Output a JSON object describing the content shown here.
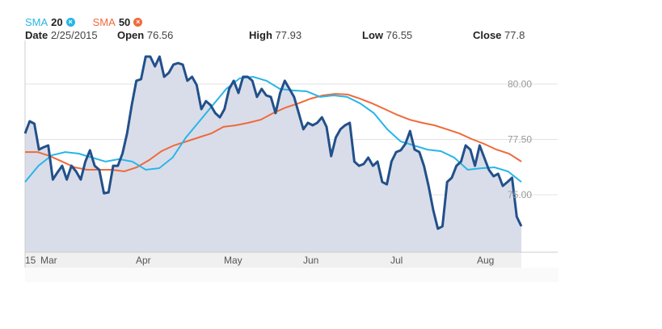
{
  "legend": [
    {
      "name": "SMA",
      "period": "20",
      "color": "#29b5e8",
      "remove_icon": "close-circle-icon"
    },
    {
      "name": "SMA",
      "period": "50",
      "color": "#ef6a3a",
      "remove_icon": "close-circle-icon"
    }
  ],
  "ohlc": {
    "date_label": "Date",
    "date": "2/25/2015",
    "open_label": "Open",
    "open": "76.56",
    "high_label": "High",
    "high": "77.93",
    "low_label": "Low",
    "low": "76.55",
    "close_label": "Close",
    "close": "77.8"
  },
  "chart_data": {
    "type": "area",
    "x_tick_labels": [
      "15",
      "Mar",
      "Apr",
      "May",
      "Jun",
      "Jul",
      "Aug"
    ],
    "y_tick_labels": [
      "80.00",
      "77.50",
      "75.00"
    ],
    "y_ticks": [
      80,
      77.5,
      75
    ],
    "ylim": [
      72.3,
      82.7
    ],
    "grid": true,
    "colors": {
      "price": "#22508a",
      "fill": "#d9dde9",
      "sma20": "#29b5e8",
      "sma50": "#ef6a3a"
    },
    "series": [
      {
        "key": "price",
        "values": [
          77.77,
          78.32,
          78.21,
          77.04,
          77.15,
          77.23,
          75.69,
          76.02,
          76.31,
          75.69,
          76.31,
          76.06,
          75.69,
          76.5,
          77.01,
          76.31,
          76.13,
          75.07,
          75.11,
          76.31,
          76.31,
          76.86,
          77.77,
          79.05,
          80.15,
          80.22,
          81.24,
          81.24,
          80.8,
          81.24,
          80.33,
          80.51,
          80.88,
          80.95,
          80.88,
          80.15,
          80.33,
          79.96,
          78.87,
          79.23,
          79.05,
          78.69,
          78.5,
          78.87,
          79.78,
          80.15,
          79.6,
          80.33,
          80.33,
          80.15,
          79.42,
          79.78,
          79.49,
          79.42,
          78.69,
          79.6,
          80.15,
          79.78,
          79.42,
          78.69,
          77.96,
          78.25,
          78.14,
          78.25,
          78.5,
          78.07,
          76.75,
          77.59,
          77.96,
          78.14,
          78.25,
          76.5,
          76.31,
          76.39,
          76.68,
          76.31,
          76.5,
          75.58,
          75.47,
          76.5,
          76.93,
          77.01,
          77.3,
          77.88,
          77.04,
          76.93,
          76.31,
          75.4,
          74.31,
          73.47,
          73.58,
          75.58,
          75.77,
          76.31,
          76.5,
          77.23,
          77.04,
          76.31,
          77.23,
          76.68,
          76.13,
          75.84,
          75.95,
          75.4,
          75.58,
          75.77,
          74.01,
          73.58
        ]
      },
      {
        "key": "sma20",
        "name": "SMA 20",
        "values": [
          75.58,
          76.31,
          76.79,
          76.93,
          76.86,
          76.68,
          76.5,
          76.61,
          76.5,
          76.13,
          76.2,
          76.68,
          77.59,
          78.32,
          79.05,
          79.78,
          80.26,
          80.33,
          80.15,
          79.78,
          79.71,
          79.67,
          79.42,
          79.49,
          79.42,
          79.12,
          78.69,
          77.96,
          77.41,
          77.23,
          77.04,
          76.97,
          76.68,
          76.13,
          76.2,
          76.24,
          76.06,
          75.58
        ]
      },
      {
        "key": "sma50",
        "name": "SMA 50",
        "values": [
          76.93,
          76.93,
          76.75,
          76.5,
          76.24,
          76.13,
          76.13,
          76.13,
          76.06,
          76.24,
          76.57,
          76.97,
          77.23,
          77.41,
          77.59,
          77.77,
          78.07,
          78.14,
          78.25,
          78.39,
          78.69,
          78.94,
          79.12,
          79.34,
          79.49,
          79.56,
          79.53,
          79.34,
          79.12,
          78.87,
          78.61,
          78.39,
          78.25,
          78.14,
          77.96,
          77.77,
          77.52,
          77.3,
          77.04,
          76.86,
          76.5
        ]
      }
    ]
  }
}
